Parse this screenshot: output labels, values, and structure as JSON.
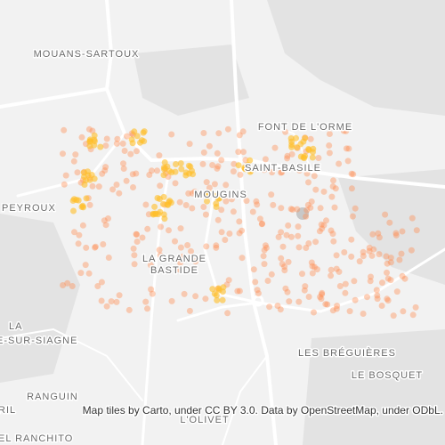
{
  "map": {
    "labels": [
      "MOUANS-SARTOUX",
      "FONT DE L'ORME",
      "SAINT-BASILE",
      "MOUGINS",
      "PEYROUX",
      [
        "LA GRANDE",
        "BASTIDE"
      ],
      "LA",
      "E-SUR-SIAGNE",
      "LES BRÉGUIÈRES",
      "LE BOSQUET",
      "RANGUIN",
      "RIL",
      "L'OLIVET",
      "EL RANCHITO"
    ],
    "attribution": "Map tiles by Carto, under CC BY 3.0. Data by OpenStreetMap, under ODbL."
  }
}
